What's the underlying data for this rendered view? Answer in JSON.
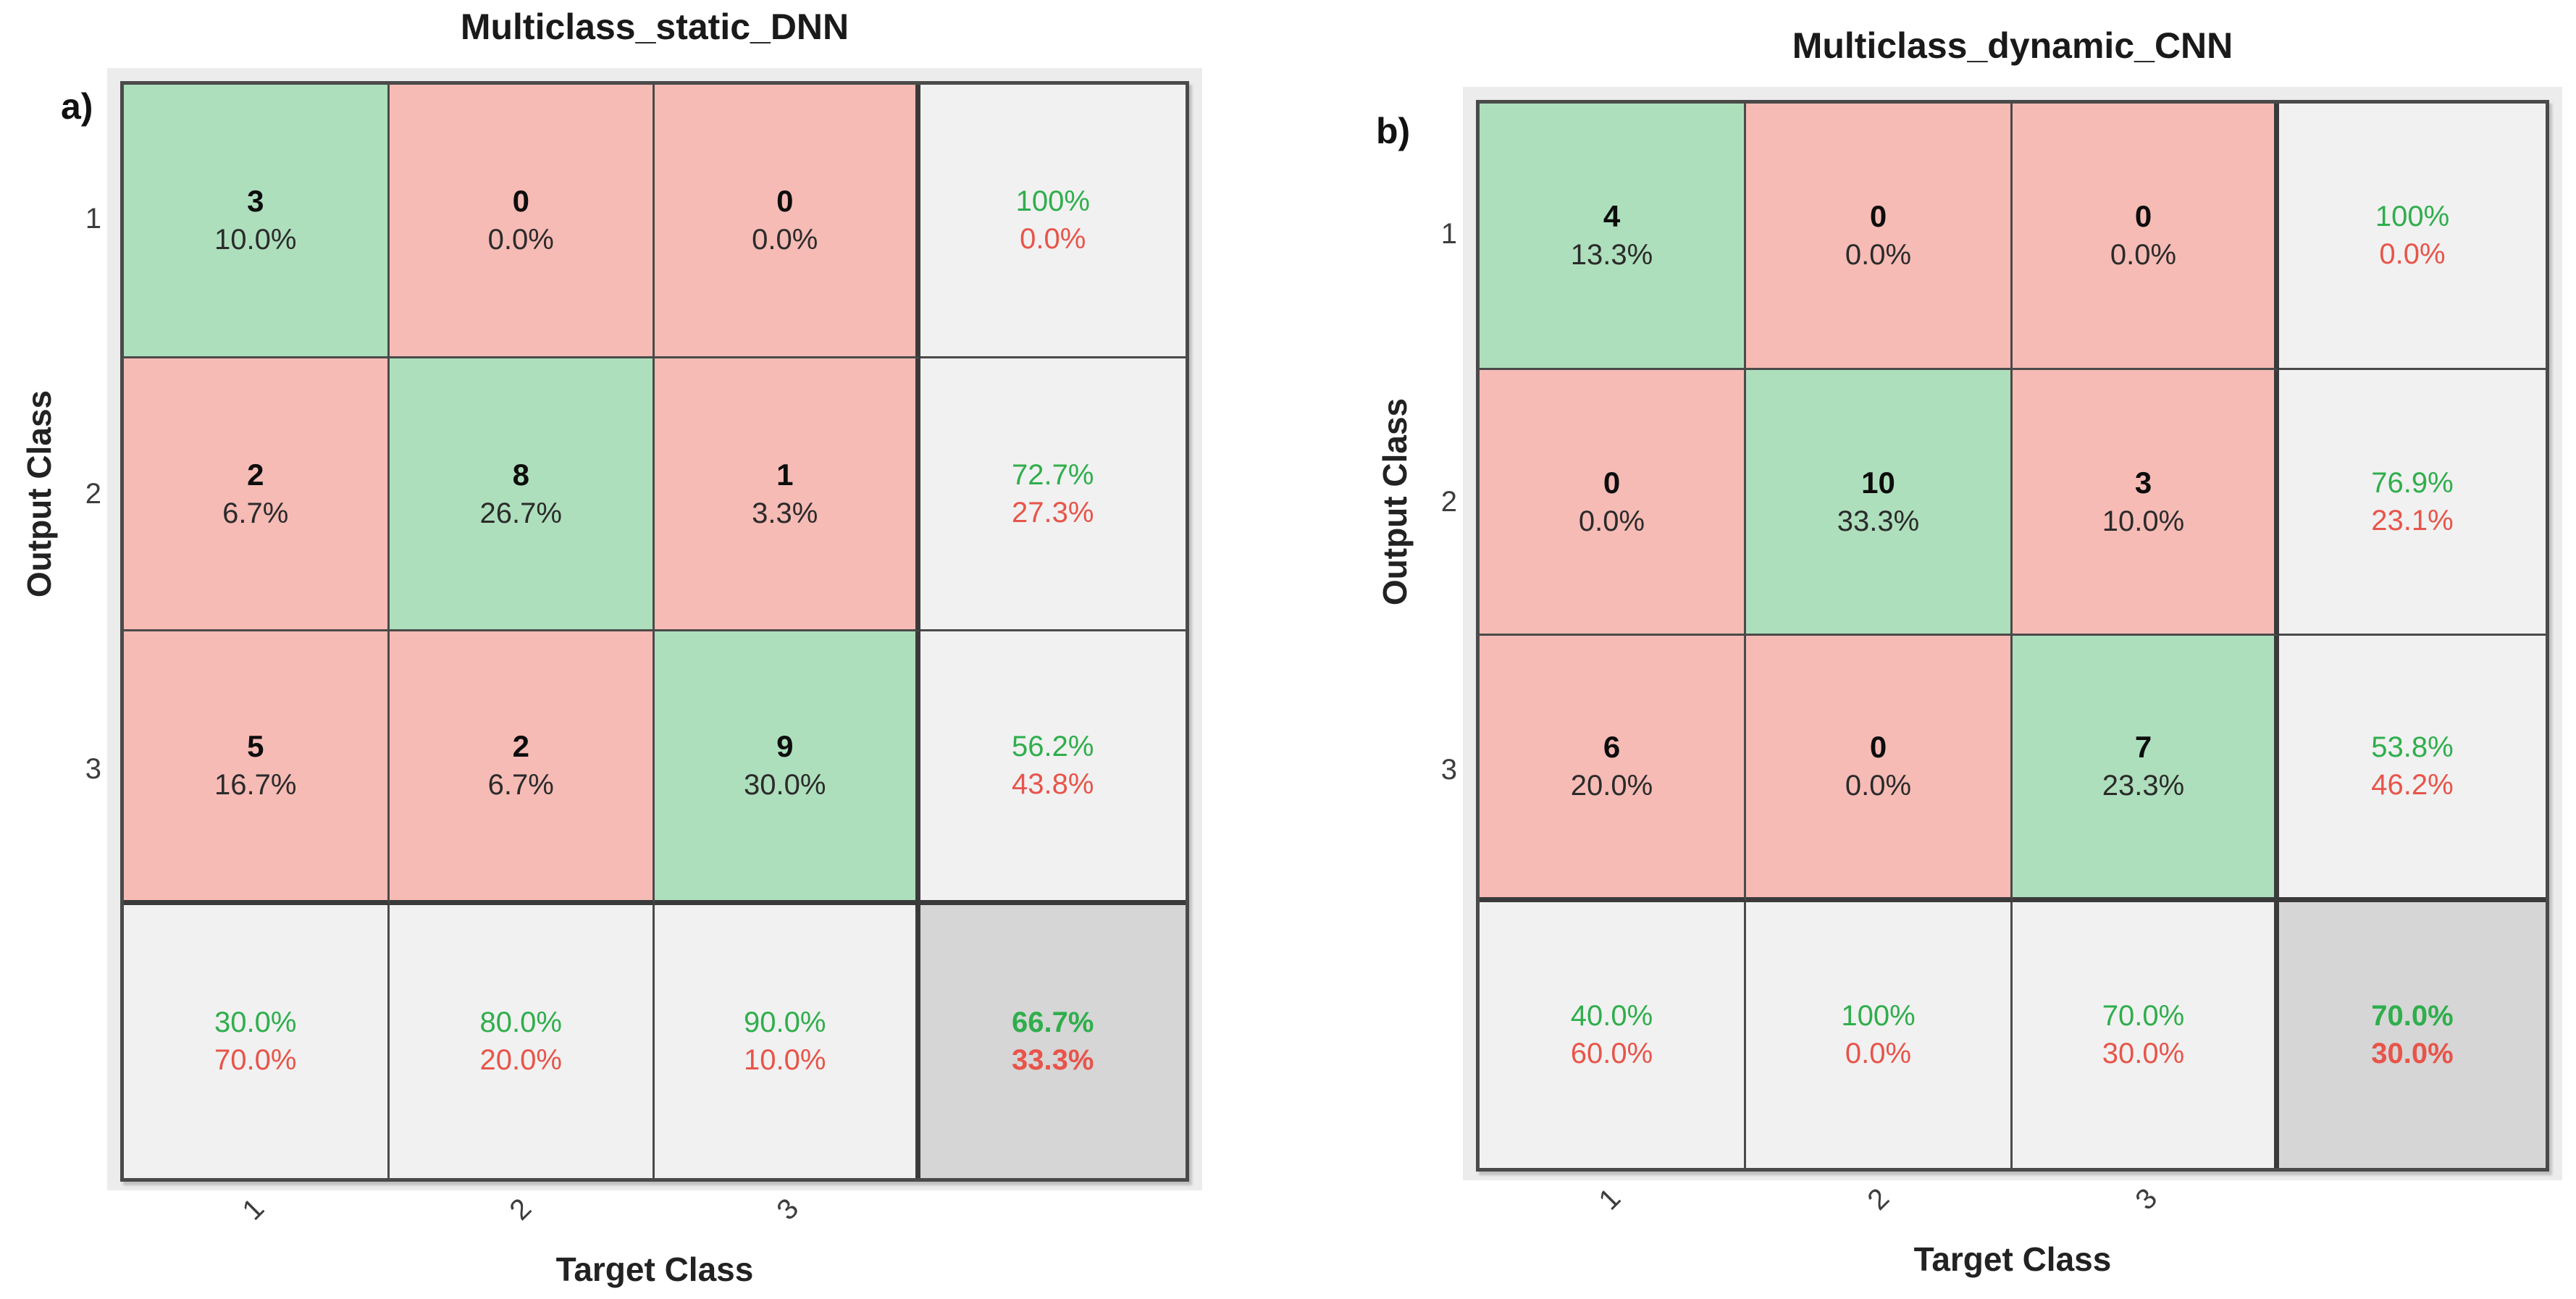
{
  "page": {
    "background": "#ffffff"
  },
  "panel_labels": [
    "a)",
    "b)"
  ],
  "colors": {
    "correct_bg": "#aedfbc",
    "incorrect_bg": "#f6bbb5",
    "summary_bg": "#f1f1f1",
    "total_bg": "#d6d6d6",
    "good_text": "#2fae4c",
    "bad_text": "#e8544a",
    "grid_line": "#4a4a4a",
    "grid_line_heavy": "#3a3a3a"
  },
  "chart_data": [
    {
      "type": "heatmap",
      "chart_kind": "confusion_matrix",
      "title": "Multiclass_static_DNN",
      "xlabel": "Target Class",
      "ylabel": "Output Class",
      "class_labels": [
        "1",
        "2",
        "3"
      ],
      "cells": [
        [
          {
            "count": "3",
            "pct": "10.0%",
            "correct": true
          },
          {
            "count": "0",
            "pct": "0.0%",
            "correct": false
          },
          {
            "count": "0",
            "pct": "0.0%",
            "correct": false
          }
        ],
        [
          {
            "count": "2",
            "pct": "6.7%",
            "correct": false
          },
          {
            "count": "8",
            "pct": "26.7%",
            "correct": true
          },
          {
            "count": "1",
            "pct": "3.3%",
            "correct": false
          }
        ],
        [
          {
            "count": "5",
            "pct": "16.7%",
            "correct": false
          },
          {
            "count": "2",
            "pct": "6.7%",
            "correct": false
          },
          {
            "count": "9",
            "pct": "30.0%",
            "correct": true
          }
        ]
      ],
      "row_summary": [
        {
          "good": "100%",
          "bad": "0.0%"
        },
        {
          "good": "72.7%",
          "bad": "27.3%"
        },
        {
          "good": "56.2%",
          "bad": "43.8%"
        }
      ],
      "col_summary": [
        {
          "good": "30.0%",
          "bad": "70.0%"
        },
        {
          "good": "80.0%",
          "bad": "20.0%"
        },
        {
          "good": "90.0%",
          "bad": "10.0%"
        }
      ],
      "total": {
        "good": "66.7%",
        "bad": "33.3%"
      }
    },
    {
      "type": "heatmap",
      "chart_kind": "confusion_matrix",
      "title": "Multiclass_dynamic_CNN",
      "xlabel": "Target Class",
      "ylabel": "Output Class",
      "class_labels": [
        "1",
        "2",
        "3"
      ],
      "cells": [
        [
          {
            "count": "4",
            "pct": "13.3%",
            "correct": true
          },
          {
            "count": "0",
            "pct": "0.0%",
            "correct": false
          },
          {
            "count": "0",
            "pct": "0.0%",
            "correct": false
          }
        ],
        [
          {
            "count": "0",
            "pct": "0.0%",
            "correct": false
          },
          {
            "count": "10",
            "pct": "33.3%",
            "correct": true
          },
          {
            "count": "3",
            "pct": "10.0%",
            "correct": false
          }
        ],
        [
          {
            "count": "6",
            "pct": "20.0%",
            "correct": false
          },
          {
            "count": "0",
            "pct": "0.0%",
            "correct": false
          },
          {
            "count": "7",
            "pct": "23.3%",
            "correct": true
          }
        ]
      ],
      "row_summary": [
        {
          "good": "100%",
          "bad": "0.0%"
        },
        {
          "good": "76.9%",
          "bad": "23.1%"
        },
        {
          "good": "53.8%",
          "bad": "46.2%"
        }
      ],
      "col_summary": [
        {
          "good": "40.0%",
          "bad": "60.0%"
        },
        {
          "good": "100%",
          "bad": "0.0%"
        },
        {
          "good": "70.0%",
          "bad": "30.0%"
        }
      ],
      "total": {
        "good": "70.0%",
        "bad": "30.0%"
      }
    }
  ]
}
